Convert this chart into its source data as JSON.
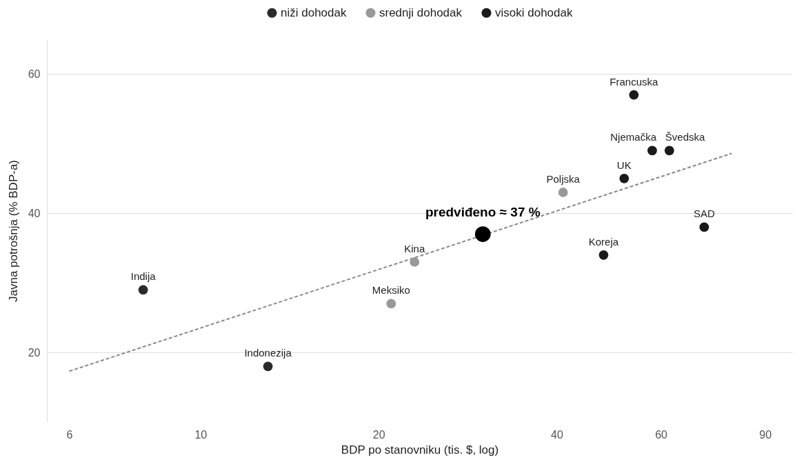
{
  "chart_data": {
    "type": "scatter",
    "xlabel": "BDP po stanovniku (tis. $, log)",
    "ylabel": "Javna potrošnja (% BDP-a)",
    "log": "x",
    "ylim": [
      10,
      65
    ],
    "xlim": [
      5.5,
      100
    ],
    "xticks": [
      6,
      10,
      20,
      40,
      60,
      90
    ],
    "yticks": [
      20,
      40,
      60
    ],
    "grid": "y",
    "legend": "top",
    "marker": "circle",
    "series": [
      {
        "name": "niži dohodak",
        "color": "#2b2b2b",
        "x": [
          8,
          13
        ],
        "values": [
          29,
          18
        ],
        "value_labels": [
          "Indija",
          "Indonezija"
        ]
      },
      {
        "name": "srednji dohodak",
        "color": "#999999",
        "x": [
          21,
          23,
          41
        ],
        "values": [
          27,
          33,
          43
        ],
        "value_labels": [
          "Meksiko",
          "Kina",
          "Poljska"
        ]
      },
      {
        "name": "visoki dohodak",
        "color": "#1a1a1a",
        "x": [
          48,
          52,
          54,
          58,
          62,
          71
        ],
        "values": [
          34,
          45,
          57,
          49,
          49,
          38
        ],
        "value_labels": [
          "Koreja",
          "UK",
          "Francuska",
          "Njemačka",
          "Švedska",
          "SAD"
        ]
      },
      {
        "type": "bubble",
        "color": "#000000",
        "x": [
          30
        ],
        "values": [
          37
        ],
        "sizes": [
          1
        ]
      },
      {
        "type": "line",
        "color": "#888888",
        "line_style": "dashed",
        "marker": "none",
        "x": [
          6,
          79
        ],
        "values": [
          17.3,
          48.6
        ]
      }
    ],
    "annotations": [
      {
        "text": "predviđeno ≈ 37 %",
        "x": 30,
        "y": 37
      }
    ]
  }
}
